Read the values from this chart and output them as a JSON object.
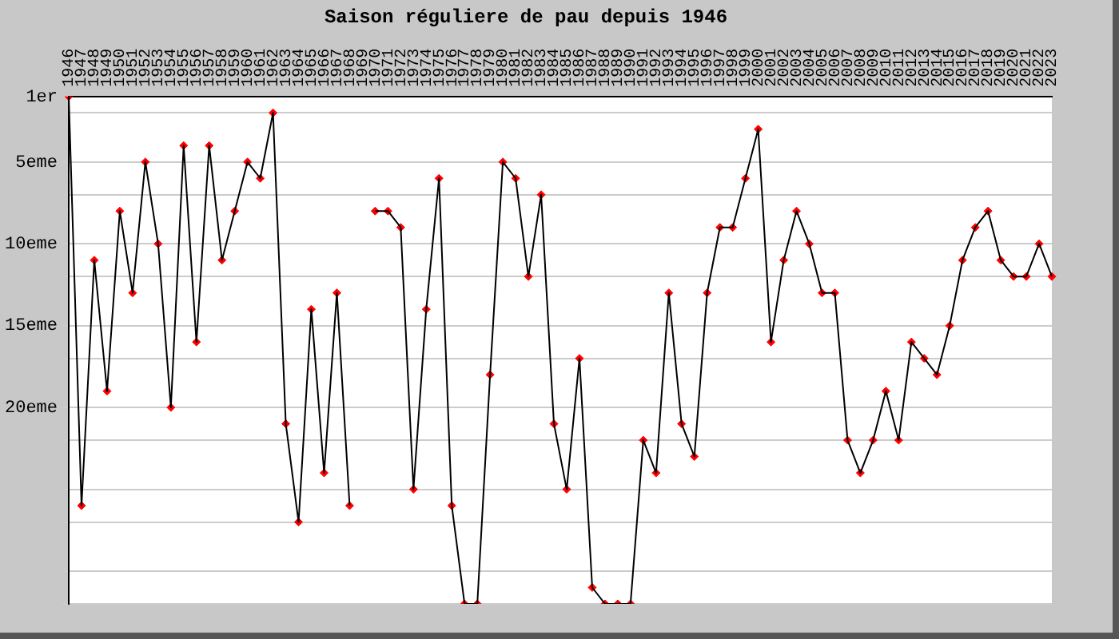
{
  "chart_data": {
    "type": "line",
    "title": "Saison réguliere de pau depuis 1946",
    "categories": [
      "1946",
      "1947",
      "1948",
      "1949",
      "1950",
      "1951",
      "1952",
      "1953",
      "1954",
      "1955",
      "1956",
      "1957",
      "1958",
      "1959",
      "1960",
      "1961",
      "1962",
      "1963",
      "1964",
      "1965",
      "1966",
      "1967",
      "1968",
      "1969",
      "1970",
      "1971",
      "1972",
      "1973",
      "1974",
      "1975",
      "1976",
      "1977",
      "1978",
      "1979",
      "1980",
      "1981",
      "1982",
      "1983",
      "1984",
      "1985",
      "1986",
      "1987",
      "1988",
      "1989",
      "1990",
      "1991",
      "1992",
      "1993",
      "1994",
      "1995",
      "1996",
      "1997",
      "1998",
      "1999",
      "2000",
      "2001",
      "2002",
      "2003",
      "2004",
      "2005",
      "2006",
      "2007",
      "2008",
      "2009",
      "2010",
      "2011",
      "2012",
      "2013",
      "2014",
      "2015",
      "2016",
      "2017",
      "2018",
      "2019",
      "2020",
      "2021",
      "2022",
      "2023"
    ],
    "series": [
      {
        "color": "#000000",
        "marker": "none",
        "values": [
          1,
          26,
          11,
          19,
          8,
          13,
          5,
          10,
          20,
          4,
          16,
          4,
          11,
          8,
          5,
          6,
          2,
          21,
          27,
          14,
          24,
          13,
          26,
          null,
          8,
          8,
          9,
          25,
          14,
          6,
          26,
          32,
          32,
          18,
          5,
          6,
          12,
          7,
          21,
          25,
          17,
          31,
          32,
          32,
          32,
          22,
          24,
          13,
          21,
          23,
          13,
          9,
          9,
          6,
          3,
          16,
          11,
          8,
          10,
          13,
          13,
          22,
          24,
          22,
          19,
          22,
          16,
          17,
          18,
          15,
          11,
          9,
          8,
          11,
          12,
          12,
          10,
          12
        ]
      },
      {
        "type": "scatter",
        "color": "#ff0000",
        "marker": "diamond",
        "values": [
          1,
          26,
          11,
          19,
          8,
          13,
          5,
          10,
          20,
          4,
          16,
          4,
          11,
          8,
          5,
          6,
          2,
          21,
          27,
          14,
          24,
          13,
          26,
          null,
          8,
          8,
          9,
          25,
          14,
          6,
          26,
          32,
          32,
          18,
          5,
          6,
          12,
          7,
          21,
          25,
          17,
          31,
          32,
          32,
          32,
          22,
          24,
          13,
          21,
          23,
          13,
          9,
          9,
          6,
          3,
          16,
          11,
          8,
          10,
          13,
          13,
          22,
          24,
          22,
          19,
          22,
          16,
          17,
          18,
          15,
          11,
          9,
          8,
          11,
          12,
          12,
          10,
          12
        ]
      }
    ],
    "ylim": [
      32,
      1
    ],
    "yticks": [
      {
        "value": 1,
        "label": "1er"
      },
      {
        "value": 2,
        "label": null
      },
      {
        "value": 5,
        "label": "5eme"
      },
      {
        "value": 7,
        "label": null
      },
      {
        "value": 10,
        "label": "10eme"
      },
      {
        "value": 12,
        "label": null
      },
      {
        "value": 15,
        "label": "15eme"
      },
      {
        "value": 17,
        "label": null
      },
      {
        "value": 20,
        "label": "20eme"
      },
      {
        "value": 22,
        "label": null
      },
      {
        "value": 25,
        "label": null
      },
      {
        "value": 27,
        "label": null
      },
      {
        "value": 30,
        "label": null
      },
      {
        "value": 32,
        "label": null
      }
    ],
    "grid": "y",
    "legend": false,
    "line_style": "solid"
  }
}
